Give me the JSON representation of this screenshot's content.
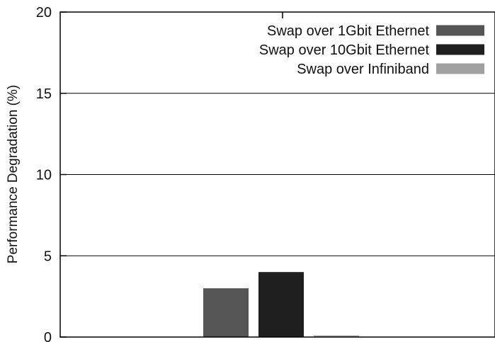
{
  "chart_data": {
    "type": "bar",
    "title": "",
    "xlabel": "",
    "ylabel": "Performance Degradation (%)",
    "ylim": [
      0,
      20
    ],
    "yticks": [
      0,
      5,
      10,
      15,
      20
    ],
    "grid": true,
    "legend_position": "top-right",
    "categories": [
      ""
    ],
    "series": [
      {
        "name": "Swap over 1Gbit Ethernet",
        "values": [
          3.0
        ],
        "color": "#555555"
      },
      {
        "name": "Swap over 10Gbit Ethernet",
        "values": [
          4.0
        ],
        "color": "#1f1f1f"
      },
      {
        "name": "Swap over Infiniband",
        "values": [
          0.1
        ],
        "color": "#a0a0a0"
      }
    ]
  }
}
